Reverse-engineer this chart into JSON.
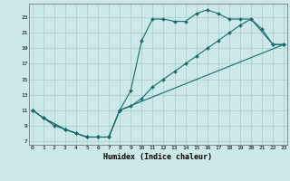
{
  "xlabel": "Humidex (Indice chaleur)",
  "bg_color": "#cce8e8",
  "line_color": "#1a6b6b",
  "grid_color": "#aacaca",
  "line1_x": [
    0,
    1,
    2,
    3,
    4,
    5,
    6,
    7,
    8,
    9,
    10,
    11,
    12,
    13,
    14,
    15,
    16,
    17,
    18,
    19,
    20,
    21,
    22,
    23
  ],
  "line1_y": [
    11,
    10,
    9,
    8.5,
    8,
    7.5,
    7.5,
    7.5,
    11.0,
    13.5,
    20.0,
    22.8,
    22.8,
    22.5,
    22.5,
    23.5,
    24.0,
    23.5,
    22.8,
    22.8,
    22.8,
    21.5,
    19.5,
    19.5
  ],
  "line2_x": [
    0,
    1,
    3,
    4,
    5,
    6,
    7,
    8,
    9,
    10,
    11,
    12,
    13,
    14,
    15,
    16,
    17,
    18,
    19,
    20,
    22,
    23
  ],
  "line2_y": [
    11,
    10,
    8.5,
    8,
    7.5,
    7.5,
    7.5,
    11.0,
    11.5,
    12.5,
    14.0,
    15.0,
    16.0,
    17.0,
    18.0,
    19.0,
    20.0,
    21.0,
    22.0,
    22.8,
    19.5,
    19.5
  ],
  "line3_x": [
    0,
    1,
    3,
    4,
    5,
    6,
    7,
    8,
    23
  ],
  "line3_y": [
    11,
    10,
    8.5,
    8,
    7.5,
    7.5,
    7.5,
    11.0,
    19.5
  ],
  "xlim": [
    -0.3,
    23.3
  ],
  "ylim": [
    6.5,
    24.8
  ],
  "xticks": [
    0,
    1,
    2,
    3,
    4,
    5,
    6,
    7,
    8,
    9,
    10,
    11,
    12,
    13,
    14,
    15,
    16,
    17,
    18,
    19,
    20,
    21,
    22,
    23
  ],
  "yticks": [
    7,
    9,
    11,
    13,
    15,
    17,
    19,
    21,
    23
  ]
}
